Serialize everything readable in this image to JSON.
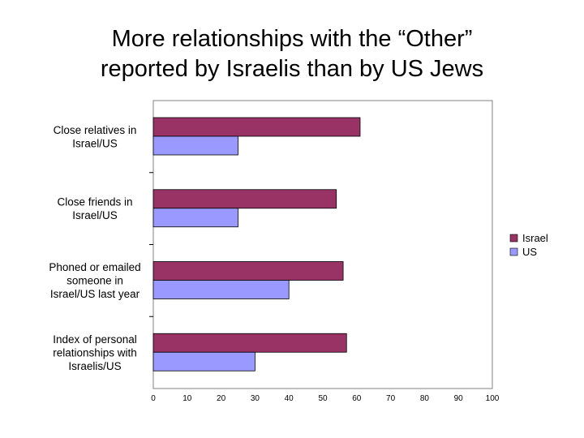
{
  "title": {
    "line1": "More relationships with the “Other”",
    "line2": "reported by Israelis than by US Jews"
  },
  "chart_data": {
    "type": "bar",
    "orientation": "horizontal",
    "categories": [
      [
        "Close relatives in",
        "Israel/US"
      ],
      [
        "Close friends in",
        "Israel/US"
      ],
      [
        "Phoned or emailed",
        "someone in",
        "Israel/US last year"
      ],
      [
        "Index of personal",
        "relationships with",
        "Israelis/US"
      ]
    ],
    "series": [
      {
        "name": "Israel",
        "color": "#993366",
        "values": [
          61,
          54,
          56,
          57
        ]
      },
      {
        "name": "US",
        "color": "#9999ff",
        "values": [
          25,
          25,
          40,
          30
        ]
      }
    ],
    "xlim": [
      0,
      100
    ],
    "xticks": [
      0,
      10,
      20,
      30,
      40,
      50,
      60,
      70,
      80,
      90,
      100
    ],
    "grid": false,
    "legend_position": "right"
  }
}
